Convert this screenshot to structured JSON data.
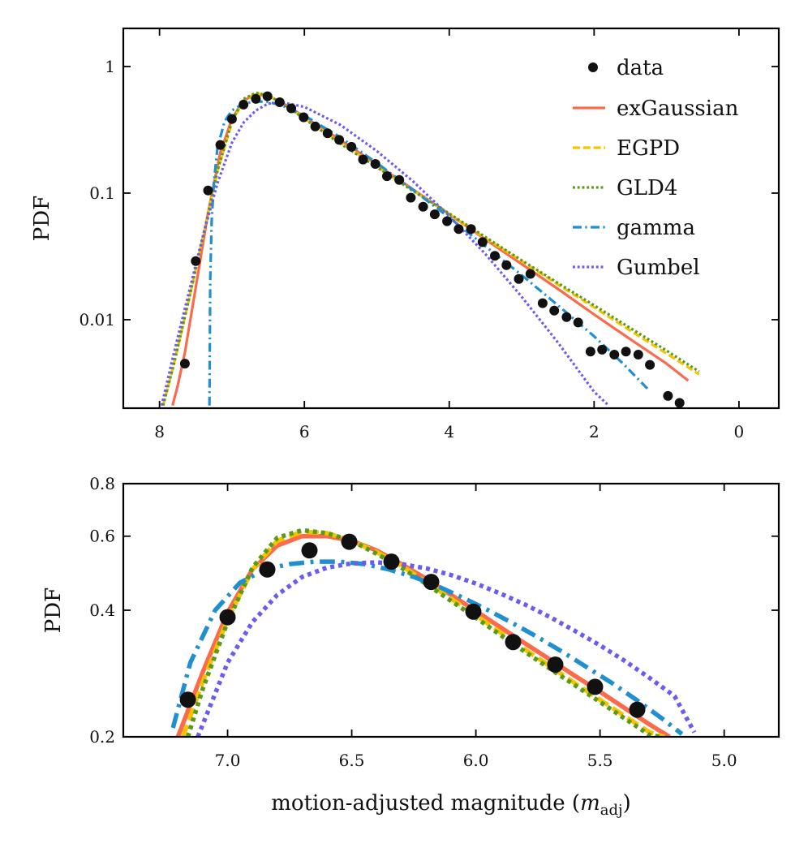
{
  "chart_data": [
    {
      "type": "line",
      "title": "",
      "xlabel": "",
      "ylabel": "PDF",
      "yscale": "log",
      "xlim": [
        8.5,
        -0.55
      ],
      "ylim": [
        0.002,
        2.0
      ],
      "xticks": [
        8,
        6,
        4,
        2,
        0
      ],
      "xtick_labels": [
        "8",
        "6",
        "4",
        "2",
        "0"
      ],
      "yticks": [
        0.01,
        0.1,
        1
      ],
      "ytick_labels": [
        "0.01",
        "0.1",
        "1"
      ],
      "legend_position": "top-right",
      "legend": [
        "data",
        "exGaussian",
        "EGPD",
        "GLD4",
        "gamma",
        "Gumbel"
      ],
      "data_points": {
        "name": "data",
        "x": [
          7.65,
          7.5,
          7.33,
          7.16,
          7.0,
          6.84,
          6.67,
          6.51,
          6.34,
          6.18,
          6.01,
          5.85,
          5.68,
          5.52,
          5.35,
          5.19,
          5.02,
          4.86,
          4.69,
          4.53,
          4.36,
          4.2,
          4.03,
          3.87,
          3.7,
          3.54,
          3.37,
          3.21,
          3.04,
          2.88,
          2.71,
          2.55,
          2.38,
          2.22,
          2.05,
          1.89,
          1.72,
          1.56,
          1.39,
          1.23,
          0.98,
          0.82
        ],
        "y": [
          0.0045,
          0.029,
          0.105,
          0.24,
          0.385,
          0.5,
          0.555,
          0.582,
          0.522,
          0.467,
          0.397,
          0.336,
          0.297,
          0.263,
          0.232,
          0.184,
          0.17,
          0.136,
          0.127,
          0.092,
          0.078,
          0.068,
          0.06,
          0.052,
          0.052,
          0.041,
          0.032,
          0.027,
          0.021,
          0.023,
          0.0135,
          0.0118,
          0.0105,
          0.0095,
          0.0056,
          0.0058,
          0.0053,
          0.0056,
          0.0053,
          0.0044,
          0.0025,
          0.0022
        ]
      },
      "series": [
        {
          "name": "exGaussian",
          "color": "#fa6a4b",
          "style": "solid",
          "x": [
            7.82,
            7.75,
            7.65,
            7.5,
            7.33,
            7.16,
            7.0,
            6.84,
            6.67,
            6.51,
            6.3,
            6.0,
            5.5,
            5.0,
            4.5,
            4.0,
            3.5,
            3.0,
            2.5,
            2.0,
            1.5,
            1.0,
            0.7
          ],
          "y": [
            0.0021,
            0.003,
            0.0055,
            0.018,
            0.07,
            0.21,
            0.385,
            0.54,
            0.6,
            0.59,
            0.515,
            0.4,
            0.262,
            0.168,
            0.107,
            0.068,
            0.043,
            0.0275,
            0.0175,
            0.011,
            0.007,
            0.0045,
            0.0033
          ]
        },
        {
          "name": "EGPD",
          "color": "#f5c400",
          "style": "dashed",
          "x": [
            7.95,
            7.8,
            7.6,
            7.4,
            7.2,
            7.0,
            6.84,
            6.67,
            6.5,
            6.3,
            6.0,
            5.5,
            5.0,
            4.5,
            4.0,
            3.5,
            3.0,
            2.5,
            2.0,
            1.5,
            1.0,
            0.55
          ],
          "y": [
            0.0021,
            0.0045,
            0.014,
            0.045,
            0.15,
            0.36,
            0.54,
            0.615,
            0.59,
            0.515,
            0.39,
            0.25,
            0.162,
            0.105,
            0.068,
            0.044,
            0.029,
            0.019,
            0.0125,
            0.0082,
            0.0054,
            0.0037
          ]
        },
        {
          "name": "GLD4",
          "color": "#5a9a18",
          "style": "dotted",
          "x": [
            7.95,
            7.8,
            7.6,
            7.4,
            7.2,
            7.0,
            6.84,
            6.67,
            6.5,
            6.3,
            6.0,
            5.5,
            5.0,
            4.5,
            4.0,
            3.5,
            3.0,
            2.5,
            2.0,
            1.5,
            1.0,
            0.55
          ],
          "y": [
            0.0021,
            0.0045,
            0.014,
            0.045,
            0.15,
            0.37,
            0.555,
            0.62,
            0.59,
            0.51,
            0.385,
            0.245,
            0.16,
            0.104,
            0.069,
            0.045,
            0.0295,
            0.0195,
            0.013,
            0.0086,
            0.0057,
            0.0039
          ]
        },
        {
          "name": "gamma",
          "color": "#1f8fd0",
          "style": "dashdot",
          "x": [
            7.31,
            7.3,
            7.28,
            7.25,
            7.2,
            7.1,
            7.0,
            6.84,
            6.67,
            6.5,
            6.3,
            6.0,
            5.5,
            5.0,
            4.5,
            4.0,
            3.5,
            3.0,
            2.5,
            2.0,
            1.6,
            1.25
          ],
          "y": [
            0.0021,
            0.02,
            0.06,
            0.12,
            0.23,
            0.37,
            0.45,
            0.51,
            0.53,
            0.525,
            0.49,
            0.41,
            0.275,
            0.173,
            0.106,
            0.064,
            0.038,
            0.0225,
            0.013,
            0.0074,
            0.0045,
            0.0028
          ]
        },
        {
          "name": "Gumbel",
          "color": "#6b5cf0",
          "style": "dotted",
          "x": [
            7.97,
            7.8,
            7.6,
            7.4,
            7.2,
            7.0,
            6.84,
            6.67,
            6.5,
            6.3,
            6.0,
            5.5,
            5.0,
            4.5,
            4.0,
            3.5,
            3.0,
            2.5,
            2.0,
            1.8
          ],
          "y": [
            0.0021,
            0.0055,
            0.016,
            0.046,
            0.12,
            0.25,
            0.36,
            0.45,
            0.51,
            0.52,
            0.48,
            0.345,
            0.215,
            0.124,
            0.066,
            0.033,
            0.0152,
            0.0066,
            0.0027,
            0.0021
          ]
        }
      ]
    },
    {
      "type": "line",
      "title": "",
      "xlabel": "motion-adjusted magnitude (",
      "xlabel_symbol": "m",
      "xlabel_sub": "adj",
      "xlabel_close": ")",
      "ylabel": "PDF",
      "yscale": "log",
      "xlim": [
        7.42,
        4.78
      ],
      "ylim": [
        0.2,
        0.8
      ],
      "xticks": [
        7.0,
        6.5,
        6.0,
        5.5,
        5.0
      ],
      "xtick_labels": [
        "7.0",
        "6.5",
        "6.0",
        "5.5",
        "5.0"
      ],
      "yticks": [
        0.2,
        0.4,
        0.6,
        0.8
      ],
      "ytick_labels": [
        "0.2",
        "0.4",
        "0.6",
        "0.8"
      ],
      "data_points": {
        "name": "data",
        "x": [
          7.16,
          7.0,
          6.84,
          6.67,
          6.51,
          6.34,
          6.18,
          6.01,
          5.85,
          5.68,
          5.52,
          5.35
        ],
        "y": [
          0.245,
          0.385,
          0.5,
          0.555,
          0.582,
          0.522,
          0.467,
          0.397,
          0.336,
          0.297,
          0.263,
          0.232
        ]
      },
      "series": [
        {
          "name": "exGaussian",
          "color": "#fa6a4b",
          "style": "solid",
          "x": [
            7.2,
            7.1,
            7.0,
            6.9,
            6.8,
            6.7,
            6.6,
            6.5,
            6.4,
            6.3,
            6.2,
            6.1,
            6.0,
            5.9,
            5.8,
            5.7,
            5.6,
            5.5,
            5.4,
            5.3,
            5.22
          ],
          "y": [
            0.2,
            0.285,
            0.395,
            0.5,
            0.57,
            0.6,
            0.6,
            0.585,
            0.555,
            0.515,
            0.475,
            0.435,
            0.398,
            0.364,
            0.333,
            0.305,
            0.279,
            0.256,
            0.234,
            0.214,
            0.2
          ]
        },
        {
          "name": "EGPD",
          "color": "#f5c400",
          "style": "dashed",
          "x": [
            7.18,
            7.1,
            7.0,
            6.9,
            6.8,
            6.7,
            6.6,
            6.5,
            6.4,
            6.3,
            6.2,
            6.1,
            6.0,
            5.9,
            5.8,
            5.7,
            5.6,
            5.5,
            5.4,
            5.3,
            5.24
          ],
          "y": [
            0.2,
            0.27,
            0.38,
            0.5,
            0.585,
            0.615,
            0.61,
            0.585,
            0.55,
            0.51,
            0.467,
            0.426,
            0.389,
            0.354,
            0.322,
            0.294,
            0.268,
            0.245,
            0.224,
            0.205,
            0.2
          ]
        },
        {
          "name": "GLD4",
          "color": "#5a9a18",
          "style": "dotted",
          "x": [
            7.16,
            7.1,
            7.0,
            6.9,
            6.8,
            6.7,
            6.6,
            6.5,
            6.4,
            6.3,
            6.2,
            6.1,
            6.0,
            5.9,
            5.8,
            5.7,
            5.6,
            5.5,
            5.4,
            5.3,
            5.25
          ],
          "y": [
            0.2,
            0.26,
            0.375,
            0.505,
            0.595,
            0.62,
            0.61,
            0.585,
            0.545,
            0.505,
            0.462,
            0.421,
            0.384,
            0.349,
            0.318,
            0.29,
            0.265,
            0.242,
            0.221,
            0.202,
            0.2
          ]
        },
        {
          "name": "gamma",
          "color": "#1f8fd0",
          "style": "dashdot",
          "x": [
            7.22,
            7.15,
            7.05,
            6.95,
            6.85,
            6.75,
            6.65,
            6.55,
            6.45,
            6.35,
            6.25,
            6.15,
            6.05,
            5.95,
            5.85,
            5.75,
            5.65,
            5.55,
            5.45,
            5.35,
            5.25,
            5.17
          ],
          "y": [
            0.21,
            0.3,
            0.4,
            0.465,
            0.5,
            0.515,
            0.522,
            0.522,
            0.515,
            0.5,
            0.48,
            0.455,
            0.428,
            0.4,
            0.372,
            0.345,
            0.318,
            0.292,
            0.268,
            0.244,
            0.221,
            0.203
          ]
        },
        {
          "name": "Gumbel",
          "color": "#6b5cf0",
          "style": "dotted",
          "x": [
            7.12,
            7.0,
            6.9,
            6.8,
            6.7,
            6.6,
            6.5,
            6.4,
            6.3,
            6.2,
            6.1,
            6.0,
            5.9,
            5.8,
            5.7,
            5.6,
            5.5,
            5.4,
            5.3,
            5.2,
            5.12
          ],
          "y": [
            0.2,
            0.3,
            0.375,
            0.435,
            0.48,
            0.505,
            0.517,
            0.52,
            0.515,
            0.503,
            0.485,
            0.463,
            0.438,
            0.412,
            0.385,
            0.357,
            0.33,
            0.303,
            0.276,
            0.25,
            0.205
          ]
        }
      ]
    }
  ]
}
